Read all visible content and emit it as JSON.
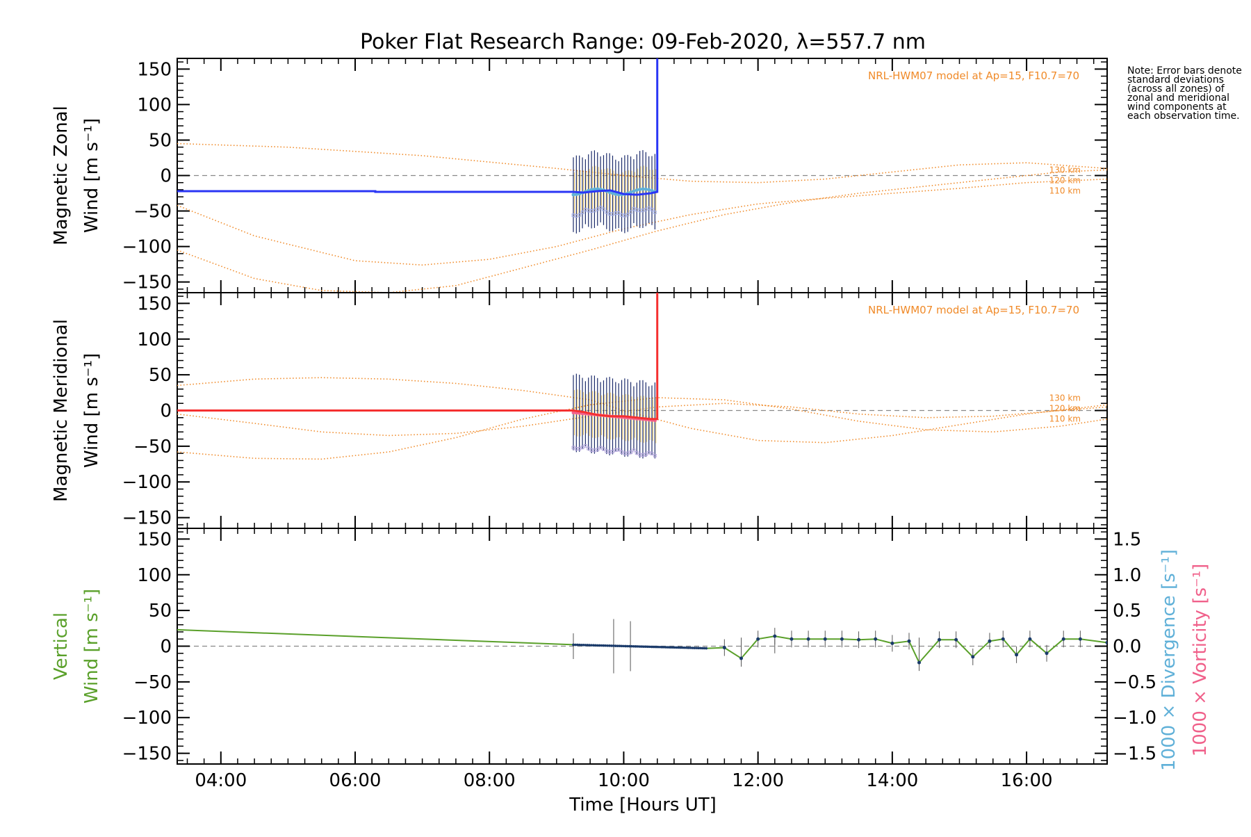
{
  "title": "Poker Flat Research Range: 09-Feb-2020, λ=557.7 nm",
  "note": "Note: Error bars denote standard deviations (across all zones) of zonal and meridional wind components at each observation time.",
  "x_axis": {
    "label": "Time [Hours UT]",
    "range_hours": [
      3.35,
      17.2
    ],
    "ticks": [
      "04:00",
      "06:00",
      "08:00",
      "10:00",
      "12:00",
      "14:00",
      "16:00"
    ],
    "tick_hours": [
      4,
      6,
      8,
      10,
      12,
      14,
      16
    ]
  },
  "colors": {
    "zonal": "#2a36f5",
    "meridional": "#f53030",
    "vertical": "#5aa02a",
    "model": "#f08a28",
    "divergence": "#5fb0d8",
    "vorticity": "#f0608a",
    "zonal_scatter": "#a8b4f0",
    "meridional_scatter": "#b8a8e0"
  },
  "chart_data": [
    {
      "type": "line",
      "panel": "zonal",
      "ylabel_line1": "Magnetic Zonal",
      "ylabel_line2": "Wind [m s⁻¹]",
      "ylim": [
        -165,
        165
      ],
      "yticks": [
        -150,
        -100,
        -50,
        0,
        50,
        100,
        150
      ],
      "model_label": "NRL-HWM07 model at Ap=15, F10.7=70",
      "model_heights": [
        "130 km",
        "120 km",
        "110 km"
      ],
      "series": [
        {
          "name": "observed",
          "x": [
            3.35,
            6.3,
            6.3,
            9.25,
            9.4,
            9.6,
            9.8,
            10.0,
            10.2,
            10.4,
            10.5,
            10.5
          ],
          "y": [
            -22,
            -22,
            -23,
            -23,
            -24,
            -22,
            -21,
            -26,
            -27,
            -25,
            -23,
            165
          ]
        },
        {
          "name": "model 110 km",
          "x": [
            3.35,
            4.5,
            6.0,
            7.0,
            8.0,
            9.0,
            10.0,
            11.0,
            12.0,
            13.0,
            14.0,
            15.0,
            16.0,
            17.2
          ],
          "y": [
            -42,
            -85,
            -120,
            -126,
            -118,
            -100,
            -75,
            -55,
            -40,
            -32,
            -25,
            -18,
            -10,
            -5
          ]
        },
        {
          "name": "model 120 km",
          "x": [
            3.35,
            4.5,
            5.5,
            6.5,
            7.5,
            8.5,
            9.5,
            10.5,
            11.5,
            12.5,
            13.5,
            14.5,
            15.5,
            16.5,
            17.2
          ],
          "y": [
            -105,
            -145,
            -162,
            -165,
            -155,
            -130,
            -105,
            -78,
            -55,
            -38,
            -25,
            -15,
            -5,
            5,
            8
          ]
        },
        {
          "name": "model 130 km",
          "x": [
            3.35,
            5.0,
            7.0,
            9.0,
            10.0,
            11.0,
            12.0,
            13.0,
            14.0,
            15.0,
            16.0,
            17.2
          ],
          "y": [
            45,
            40,
            28,
            10,
            0,
            -8,
            -10,
            -5,
            5,
            15,
            18,
            10
          ]
        }
      ]
    },
    {
      "type": "line",
      "panel": "meridional",
      "ylabel_line1": "Magnetic Meridional",
      "ylabel_line2": "Wind [m s⁻¹]",
      "ylim": [
        -165,
        165
      ],
      "yticks": [
        -150,
        -100,
        -50,
        0,
        50,
        100,
        150
      ],
      "model_label": "NRL-HWM07 model at Ap=15, F10.7=70",
      "model_heights": [
        "130 km",
        "120 km",
        "110 km"
      ],
      "series": [
        {
          "name": "observed",
          "x": [
            3.35,
            9.25,
            9.4,
            9.6,
            9.8,
            10.0,
            10.2,
            10.4,
            10.5,
            10.5
          ],
          "y": [
            0,
            0,
            -2,
            -6,
            -8,
            -8,
            -10,
            -12,
            -12,
            165
          ]
        },
        {
          "name": "model 110 km",
          "x": [
            3.35,
            4.5,
            5.5,
            6.5,
            7.5,
            8.5,
            9.5,
            10.5,
            11.5,
            12.5,
            13.5,
            14.5,
            15.5,
            16.5,
            17.2
          ],
          "y": [
            -58,
            -67,
            -68,
            -58,
            -38,
            -12,
            8,
            18,
            15,
            2,
            -15,
            -27,
            -30,
            -22,
            -12
          ]
        },
        {
          "name": "model 120 km",
          "x": [
            3.35,
            4.5,
            5.5,
            6.5,
            7.5,
            8.5,
            9.5,
            10.5,
            11.5,
            12.5,
            13.5,
            14.5,
            15.5,
            16.5,
            17.2
          ],
          "y": [
            -5,
            -18,
            -30,
            -35,
            -32,
            -22,
            -8,
            5,
            10,
            5,
            -5,
            -10,
            -8,
            0,
            5
          ]
        },
        {
          "name": "model 130 km",
          "x": [
            3.35,
            4.5,
            5.5,
            6.5,
            7.5,
            8.5,
            9.5,
            10.0,
            11.0,
            12.0,
            13.0,
            14.0,
            15.0,
            16.0,
            17.2
          ],
          "y": [
            35,
            44,
            46,
            44,
            38,
            28,
            15,
            0,
            -25,
            -42,
            -45,
            -35,
            -20,
            -5,
            8
          ]
        }
      ]
    },
    {
      "type": "line",
      "panel": "vertical",
      "ylabel_line1": "Vertical",
      "ylabel_line2": "Wind [m s⁻¹]",
      "ylim": [
        -165,
        165
      ],
      "yticks": [
        -150,
        -100,
        -50,
        0,
        50,
        100,
        150
      ],
      "y2lim": [
        -1.65,
        1.65
      ],
      "y2ticks": [
        -1.5,
        -1.0,
        -0.5,
        0.0,
        0.5,
        1.0,
        1.5
      ],
      "y2label_divergence": "1000 × Divergence [s⁻¹]",
      "y2label_vorticity": "1000 × Vorticity [s⁻¹]",
      "series": [
        {
          "name": "vertical wind",
          "x": [
            3.35,
            9.25,
            10.0,
            10.5,
            11.0,
            11.25,
            11.5,
            11.75,
            12.0,
            12.25,
            12.5,
            12.75,
            13.0,
            13.25,
            13.5,
            13.75,
            14.0,
            14.25,
            14.4,
            14.7,
            14.95,
            15.2,
            15.45,
            15.65,
            15.85,
            16.05,
            16.3,
            16.55,
            16.8,
            17.2
          ],
          "y": [
            23,
            2,
            0,
            -1,
            -2,
            -3,
            -2,
            -17,
            10,
            14,
            10,
            10,
            10,
            10,
            9,
            10,
            4,
            7,
            -23,
            9,
            9,
            -15,
            7,
            10,
            -12,
            10,
            -10,
            10,
            10,
            5
          ]
        },
        {
          "name": "error bars",
          "x": [
            9.25,
            9.85,
            10.1,
            11.75,
            12.25,
            14.4
          ],
          "err": [
            18,
            38,
            35,
            12,
            10,
            12
          ]
        }
      ]
    }
  ]
}
